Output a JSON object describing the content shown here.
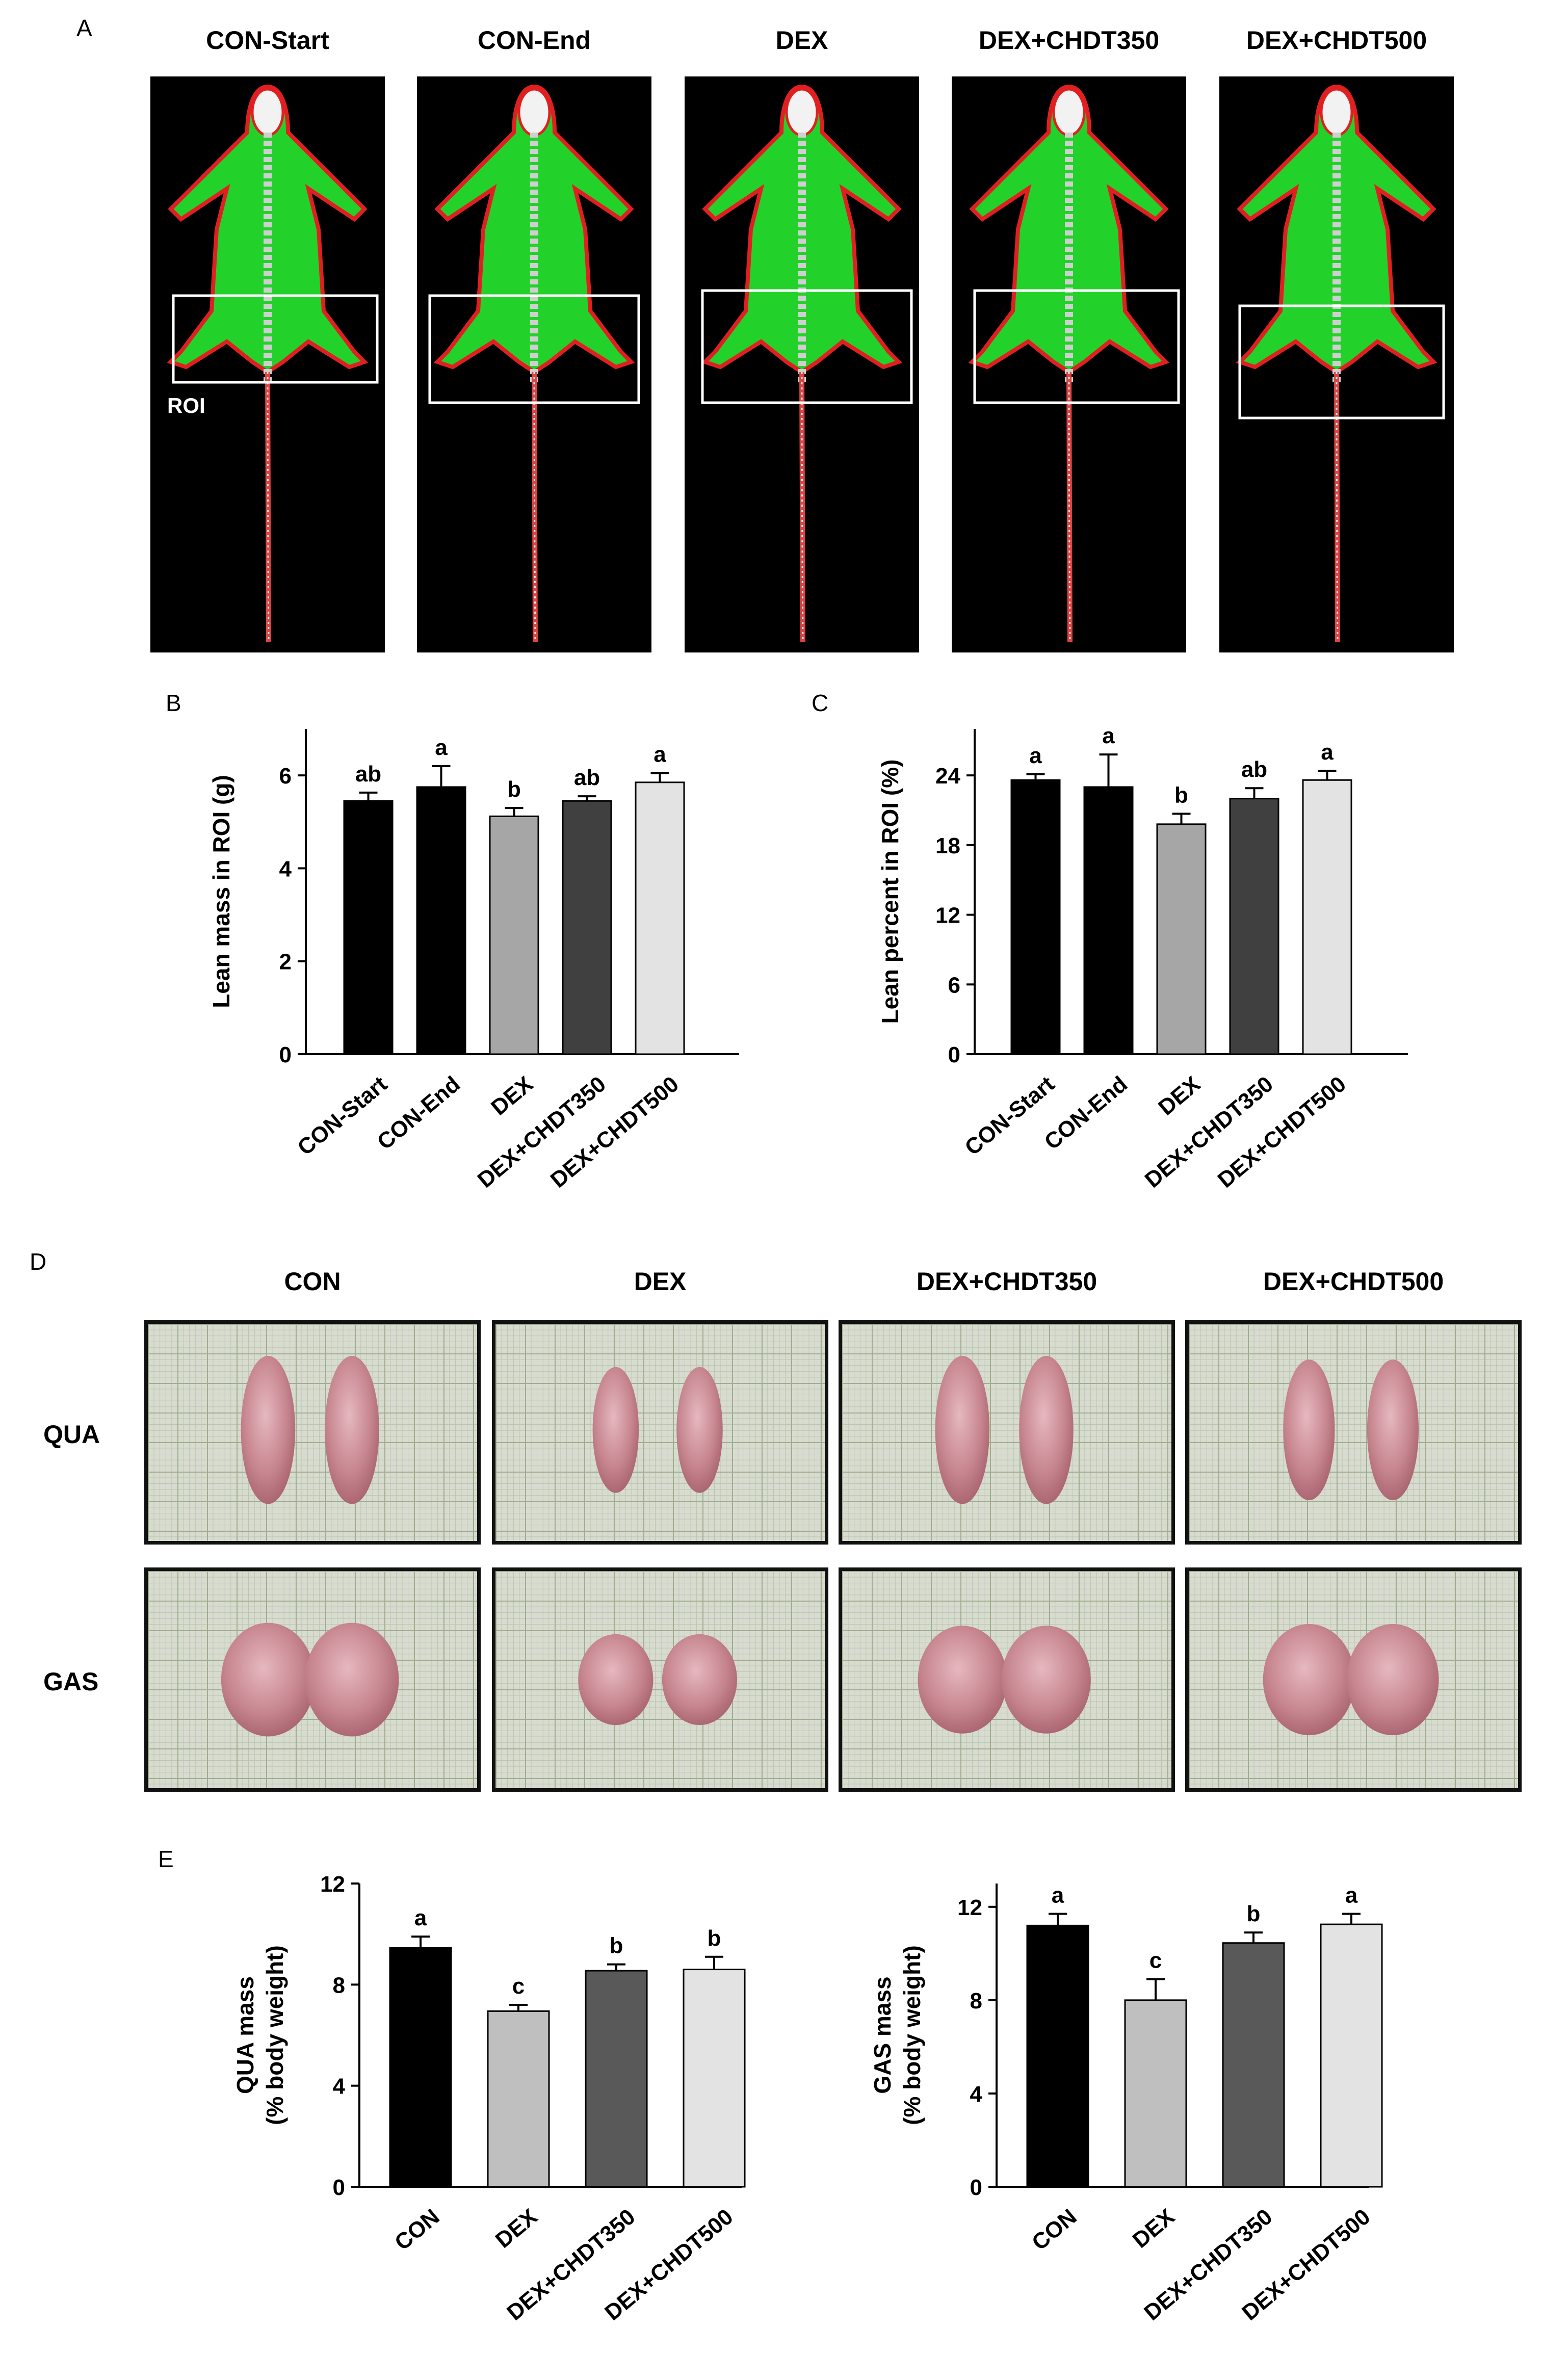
{
  "panels": {
    "A": "A",
    "B": "B",
    "C": "C",
    "D": "D",
    "E": "E"
  },
  "panel_a": {
    "titles": [
      "CON-Start",
      "CON-End",
      "DEX",
      "DEX+CHDT350",
      "DEX+CHDT500"
    ],
    "roi_label": "ROI"
  },
  "panel_d": {
    "columns": [
      "CON",
      "DEX",
      "DEX+CHDT350",
      "DEX+CHDT500"
    ],
    "rows": [
      "QUA",
      "GAS"
    ]
  },
  "chart_data": [
    {
      "id": "B",
      "type": "bar",
      "categories": [
        "CON-Start",
        "CON-End",
        "DEX",
        "DEX+CHDT350",
        "DEX+CHDT500"
      ],
      "values": [
        5.45,
        5.75,
        5.12,
        5.45,
        5.85
      ],
      "errors": [
        0.18,
        0.45,
        0.18,
        0.1,
        0.2
      ],
      "significance": [
        "ab",
        "a",
        "b",
        "ab",
        "a"
      ],
      "colors": [
        "#000000",
        "#000000",
        "#a6a6a6",
        "#404040",
        "#e3e3e3"
      ],
      "ylabel": "Lean mass in ROI (g)",
      "yticks": [
        0,
        2,
        4,
        6
      ],
      "ylim": [
        0,
        7
      ]
    },
    {
      "id": "C",
      "type": "bar",
      "categories": [
        "CON-Start",
        "CON-End",
        "DEX",
        "DEX+CHDT350",
        "DEX+CHDT500"
      ],
      "values": [
        23.6,
        23.0,
        19.8,
        22.0,
        23.6
      ],
      "errors": [
        0.5,
        2.8,
        0.9,
        0.9,
        0.8
      ],
      "significance": [
        "a",
        "a",
        "b",
        "ab",
        "a"
      ],
      "colors": [
        "#000000",
        "#000000",
        "#a6a6a6",
        "#404040",
        "#e3e3e3"
      ],
      "ylabel": "Lean percent in ROI (%)",
      "yticks": [
        0,
        6,
        12,
        18,
        24
      ],
      "ylim": [
        0,
        28
      ]
    },
    {
      "id": "E1",
      "type": "bar",
      "categories": [
        "CON",
        "DEX",
        "DEX+CHDT350",
        "DEX+CHDT500"
      ],
      "values": [
        9.45,
        6.95,
        8.55,
        8.6
      ],
      "errors": [
        0.45,
        0.25,
        0.25,
        0.5
      ],
      "significance": [
        "a",
        "c",
        "b",
        "b"
      ],
      "colors": [
        "#000000",
        "#bfbfbf",
        "#595959",
        "#e3e3e3"
      ],
      "ylabel": [
        "QUA mass",
        "(% body weight)"
      ],
      "yticks": [
        0,
        4,
        8,
        12
      ],
      "ylim": [
        0,
        12
      ]
    },
    {
      "id": "E2",
      "type": "bar",
      "categories": [
        "CON",
        "DEX",
        "DEX+CHDT350",
        "DEX+CHDT500"
      ],
      "values": [
        11.2,
        8.0,
        10.45,
        11.25
      ],
      "errors": [
        0.5,
        0.9,
        0.45,
        0.45
      ],
      "significance": [
        "a",
        "c",
        "b",
        "a"
      ],
      "colors": [
        "#000000",
        "#bfbfbf",
        "#595959",
        "#e3e3e3"
      ],
      "ylabel": [
        "GAS mass",
        "(% body weight)"
      ],
      "yticks": [
        0,
        4,
        8,
        12
      ],
      "ylim": [
        0,
        13
      ]
    }
  ]
}
